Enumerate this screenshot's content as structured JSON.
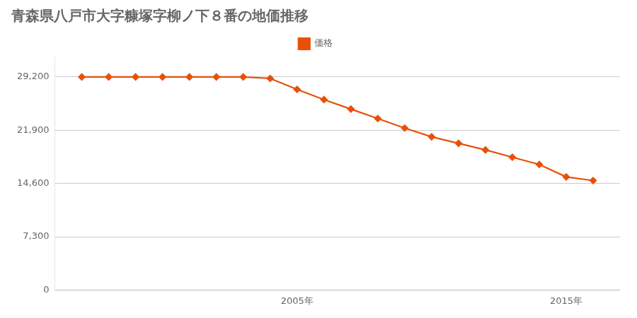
{
  "chart_data": {
    "type": "line",
    "title": "青森県八戸市大字糠塚字柳ノ下８番の地価推移",
    "x": [
      1997,
      1998,
      1999,
      2000,
      2001,
      2002,
      2003,
      2004,
      2005,
      2006,
      2007,
      2008,
      2009,
      2010,
      2011,
      2012,
      2013,
      2014,
      2015,
      2016
    ],
    "series": [
      {
        "name": "価格",
        "color": "#e8500a",
        "marker": "diamond",
        "values": [
          29200,
          29200,
          29200,
          29200,
          29200,
          29200,
          29200,
          29000,
          27500,
          26100,
          24800,
          23500,
          22200,
          21000,
          20100,
          19200,
          18200,
          17200,
          15500,
          15000
        ]
      }
    ],
    "xlim": [
      1996,
      2017
    ],
    "xticks": [
      {
        "value": 2005,
        "label": "2005年"
      },
      {
        "value": 2015,
        "label": "2015年"
      }
    ],
    "ylim": [
      0,
      32000
    ],
    "yticks": [
      0,
      {
        "value": 7300,
        "label": "7,300"
      },
      {
        "value": 14600,
        "label": "14,600"
      },
      {
        "value": 21900,
        "label": "21,900"
      },
      {
        "value": 29200,
        "label": "29,200"
      }
    ],
    "grid": "y",
    "legend": "top"
  }
}
